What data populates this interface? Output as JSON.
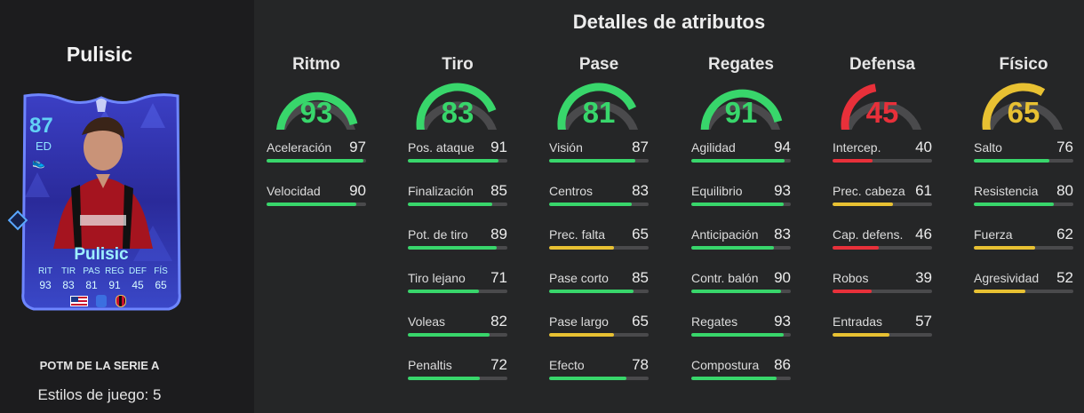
{
  "player": {
    "name": "Pulisic",
    "card": {
      "rating": "87",
      "position": "ED",
      "name": "Pulisic",
      "stat_labels": [
        "RIT",
        "TIR",
        "PAS",
        "REG",
        "DEF",
        "FÍS"
      ],
      "stat_values": [
        "93",
        "83",
        "81",
        "91",
        "45",
        "65"
      ]
    },
    "card_type": "POTM DE LA SERIE A",
    "playstyles": "Estilos de juego: 5"
  },
  "header": {
    "title": "Detalles de atributos"
  },
  "colors": {
    "green": "#38d66b",
    "yellow": "#e8c132",
    "red": "#e8303a",
    "track": "#4a4a4c"
  },
  "categories": [
    {
      "title": "Ritmo",
      "value": 93,
      "color": "#38d66b",
      "stats": [
        {
          "name": "Aceleración",
          "value": 97
        },
        {
          "name": "Velocidad",
          "value": 90
        }
      ]
    },
    {
      "title": "Tiro",
      "value": 83,
      "color": "#38d66b",
      "stats": [
        {
          "name": "Pos. ataque",
          "value": 91
        },
        {
          "name": "Finalización",
          "value": 85
        },
        {
          "name": "Pot. de tiro",
          "value": 89
        },
        {
          "name": "Tiro lejano",
          "value": 71
        },
        {
          "name": "Voleas",
          "value": 82
        },
        {
          "name": "Penaltis",
          "value": 72
        }
      ]
    },
    {
      "title": "Pase",
      "value": 81,
      "color": "#38d66b",
      "stats": [
        {
          "name": "Visión",
          "value": 87
        },
        {
          "name": "Centros",
          "value": 83
        },
        {
          "name": "Prec. falta",
          "value": 65
        },
        {
          "name": "Pase corto",
          "value": 85
        },
        {
          "name": "Pase largo",
          "value": 65
        },
        {
          "name": "Efecto",
          "value": 78
        }
      ]
    },
    {
      "title": "Regates",
      "value": 91,
      "color": "#38d66b",
      "stats": [
        {
          "name": "Agilidad",
          "value": 94
        },
        {
          "name": "Equilibrio",
          "value": 93
        },
        {
          "name": "Anticipación",
          "value": 83
        },
        {
          "name": "Contr. balón",
          "value": 90
        },
        {
          "name": "Regates",
          "value": 93
        },
        {
          "name": "Compostura",
          "value": 86
        }
      ]
    },
    {
      "title": "Defensa",
      "value": 45,
      "color": "#e8303a",
      "stats": [
        {
          "name": "Intercep.",
          "value": 40
        },
        {
          "name": "Prec. cabeza",
          "value": 61
        },
        {
          "name": "Cap. defens.",
          "value": 46
        },
        {
          "name": "Robos",
          "value": 39
        },
        {
          "name": "Entradas",
          "value": 57
        }
      ]
    },
    {
      "title": "Físico",
      "value": 65,
      "color": "#e8c132",
      "stats": [
        {
          "name": "Salto",
          "value": 76
        },
        {
          "name": "Resistencia",
          "value": 80
        },
        {
          "name": "Fuerza",
          "value": 62
        },
        {
          "name": "Agresividad",
          "value": 52
        }
      ]
    }
  ]
}
